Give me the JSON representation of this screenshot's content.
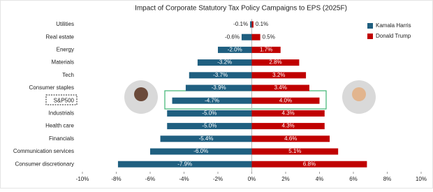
{
  "chart_data": {
    "type": "diverging-bar",
    "title": "Impact of Corporate Statutory Tax Policy Campaigns to EPS (2025F)",
    "categories": [
      "Utilities",
      "Real estate",
      "Energy",
      "Materials",
      "Tech",
      "Consumer staples",
      "S&P500",
      "Industrials",
      "Health care",
      "Financials",
      "Communication services",
      "Consumer discretionary"
    ],
    "series": [
      {
        "name": "Kamala Harris",
        "color": "#1f5f80",
        "values": [
          -0.1,
          -0.6,
          -2.0,
          -3.2,
          -3.7,
          -3.9,
          -4.7,
          -5.0,
          -5.0,
          -5.4,
          -6.0,
          -7.9
        ],
        "value_labels": [
          "-0.1%",
          "-0.6%",
          "-2.0%",
          "-3.2%",
          "-3.7%",
          "-3.9%",
          "-4.7%",
          "-5.0%",
          "-5.0%",
          "-5.4%",
          "-6.0%",
          "-7.9%"
        ]
      },
      {
        "name": "Donald Trump",
        "color": "#c00000",
        "values": [
          0.1,
          0.5,
          1.7,
          2.8,
          3.2,
          3.4,
          4.0,
          4.3,
          4.3,
          4.6,
          5.1,
          6.8
        ],
        "value_labels": [
          "0.1%",
          "0.5%",
          "1.7%",
          "2.8%",
          "3.2%",
          "3.4%",
          "4.0%",
          "4.3%",
          "4.3%",
          "4.6%",
          "5.1%",
          "6.8%"
        ]
      }
    ],
    "xlim": [
      -10,
      10
    ],
    "xticks": [
      {
        "value": -10,
        "label": "-10%"
      },
      {
        "value": -8,
        "label": "-8%"
      },
      {
        "value": -6,
        "label": "-6%"
      },
      {
        "value": -4,
        "label": "-4%"
      },
      {
        "value": -2,
        "label": "-2%"
      },
      {
        "value": 0,
        "label": "0%"
      },
      {
        "value": 2,
        "label": "2%"
      },
      {
        "value": 4,
        "label": "4%"
      },
      {
        "value": 6,
        "label": "6%"
      },
      {
        "value": 8,
        "label": "8%"
      },
      {
        "value": 10,
        "label": "10%"
      }
    ],
    "legend": "upper right"
  }
}
